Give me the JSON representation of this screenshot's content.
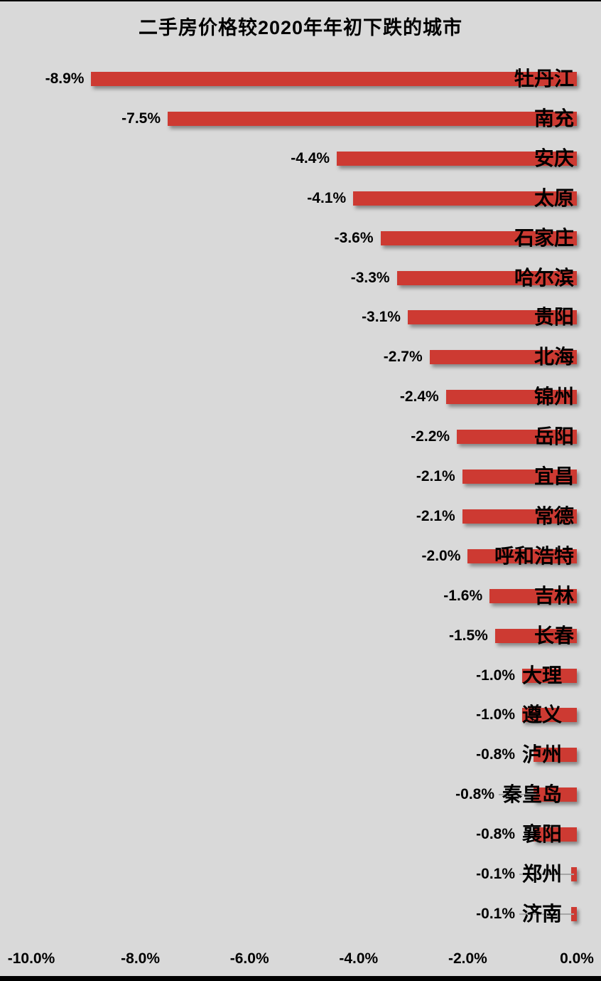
{
  "title": "二手房价格较2020年年初下跌的城市",
  "colors": {
    "background": "#D9D9D9",
    "bar": "#CD3A32",
    "text": "#000000",
    "leader_line": "#A6A6A6",
    "border": "#000000"
  },
  "chart_data": {
    "type": "bar",
    "orientation": "horizontal",
    "title": "二手房价格较2020年年初下跌的城市",
    "categories": [
      "牡丹江",
      "南充",
      "安庆",
      "太原",
      "石家庄",
      "哈尔滨",
      "贵阳",
      "北海",
      "锦州",
      "岳阳",
      "宜昌",
      "常德",
      "呼和浩特",
      "吉林",
      "长春",
      "大理",
      "遵义",
      "泸州",
      "秦皇岛",
      "襄阳",
      "郑州",
      "济南"
    ],
    "values": [
      -8.9,
      -7.5,
      -4.4,
      -4.1,
      -3.6,
      -3.3,
      -3.1,
      -2.7,
      -2.4,
      -2.2,
      -2.1,
      -2.1,
      -2.0,
      -1.6,
      -1.5,
      -1.0,
      -1.0,
      -0.8,
      -0.8,
      -0.8,
      -0.1,
      -0.1
    ],
    "value_labels": [
      "-8.9%",
      "-7.5%",
      "-4.4%",
      "-4.1%",
      "-3.6%",
      "-3.3%",
      "-3.1%",
      "-2.7%",
      "-2.4%",
      "-2.2%",
      "-2.1%",
      "-2.1%",
      "-2.0%",
      "-1.6%",
      "-1.5%",
      "-1.0%",
      "-1.0%",
      "-0.8%",
      "-0.8%",
      "-0.8%",
      "-0.1%",
      "-0.1%"
    ],
    "xlabel": "",
    "ylabel": "",
    "xlim": [
      -10,
      0
    ],
    "x_tick_values": [
      -10,
      -8,
      -6,
      -4,
      -2,
      0
    ],
    "x_tick_labels": [
      "-10.0%",
      "-8.0%",
      "-6.0%",
      "-4.0%",
      "-2.0%",
      "0.0%"
    ],
    "grid": false,
    "legend": "none",
    "bar_color": "#CD3A32"
  }
}
